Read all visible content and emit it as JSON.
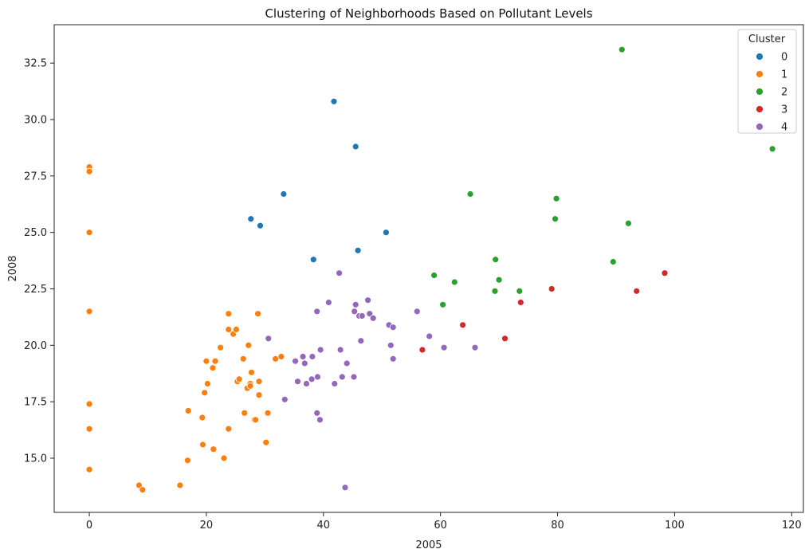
{
  "chart_data": {
    "type": "scatter",
    "title": "Clustering of Neighborhoods Based on Pollutant Levels",
    "xlabel": "2005",
    "ylabel": "2008",
    "xlim": [
      -6,
      122
    ],
    "ylim": [
      12.6,
      34.2
    ],
    "xticks": [
      0,
      20,
      40,
      60,
      80,
      100,
      120
    ],
    "yticks": [
      15.0,
      17.5,
      20.0,
      22.5,
      25.0,
      27.5,
      30.0,
      32.5
    ],
    "xtick_labels": [
      "0",
      "20",
      "40",
      "60",
      "80",
      "100",
      "120"
    ],
    "ytick_labels": [
      "15.0",
      "17.5",
      "20.0",
      "22.5",
      "25.0",
      "27.5",
      "30.0",
      "32.5"
    ],
    "grid": false,
    "legend": {
      "title": "Cluster",
      "position": "top-right"
    },
    "series": [
      {
        "name": "0",
        "color": "#1f77b4",
        "points": [
          [
            41.8,
            30.8
          ],
          [
            45.5,
            28.8
          ],
          [
            33.2,
            26.7
          ],
          [
            27.6,
            25.6
          ],
          [
            29.2,
            25.3
          ],
          [
            50.7,
            25.0
          ],
          [
            45.9,
            24.2
          ],
          [
            38.3,
            23.8
          ]
        ]
      },
      {
        "name": "1",
        "color": "#ff7f0e",
        "points": [
          [
            0,
            27.9
          ],
          [
            0,
            27.7
          ],
          [
            0,
            25.0
          ],
          [
            0,
            21.5
          ],
          [
            0,
            17.4
          ],
          [
            0,
            16.3
          ],
          [
            0,
            14.5
          ],
          [
            8.5,
            13.8
          ],
          [
            9.1,
            13.6
          ],
          [
            15.5,
            13.8
          ],
          [
            16.8,
            14.9
          ],
          [
            16.9,
            17.1
          ],
          [
            19.3,
            16.8
          ],
          [
            19.4,
            15.6
          ],
          [
            19.7,
            17.9
          ],
          [
            20.0,
            19.3
          ],
          [
            20.2,
            18.3
          ],
          [
            21.1,
            19.0
          ],
          [
            21.2,
            15.4
          ],
          [
            21.5,
            19.3
          ],
          [
            22.4,
            19.9
          ],
          [
            23.0,
            15.0
          ],
          [
            23.8,
            16.3
          ],
          [
            23.8,
            21.4
          ],
          [
            23.8,
            20.7
          ],
          [
            24.6,
            20.5
          ],
          [
            25.1,
            20.7
          ],
          [
            25.3,
            18.4
          ],
          [
            25.6,
            18.5
          ],
          [
            26.3,
            19.4
          ],
          [
            26.5,
            17.0
          ],
          [
            27.0,
            18.1
          ],
          [
            27.2,
            20.0
          ],
          [
            27.5,
            18.3
          ],
          [
            27.5,
            18.2
          ],
          [
            27.7,
            18.8
          ],
          [
            28.2,
            16.7
          ],
          [
            28.4,
            16.7
          ],
          [
            28.8,
            21.4
          ],
          [
            29.0,
            18.4
          ],
          [
            29.0,
            17.8
          ],
          [
            30.2,
            15.7
          ],
          [
            30.5,
            17.0
          ],
          [
            31.8,
            19.4
          ],
          [
            32.8,
            19.5
          ]
        ]
      },
      {
        "name": "2",
        "color": "#2ca02c",
        "points": [
          [
            91.0,
            33.1
          ],
          [
            116.7,
            28.7
          ],
          [
            65.1,
            26.7
          ],
          [
            79.8,
            26.5
          ],
          [
            79.6,
            25.6
          ],
          [
            92.1,
            25.4
          ],
          [
            69.4,
            23.8
          ],
          [
            89.5,
            23.7
          ],
          [
            58.9,
            23.1
          ],
          [
            62.4,
            22.8
          ],
          [
            70.0,
            22.9
          ],
          [
            69.3,
            22.4
          ],
          [
            73.5,
            22.4
          ],
          [
            60.4,
            21.8
          ]
        ]
      },
      {
        "name": "3",
        "color": "#d62728",
        "points": [
          [
            98.3,
            23.2
          ],
          [
            79.0,
            22.5
          ],
          [
            93.5,
            22.4
          ],
          [
            73.7,
            21.9
          ],
          [
            63.8,
            20.9
          ],
          [
            71.0,
            20.3
          ],
          [
            56.9,
            19.8
          ]
        ]
      },
      {
        "name": "4",
        "color": "#9467bd",
        "points": [
          [
            42.7,
            23.2
          ],
          [
            47.6,
            22.0
          ],
          [
            40.9,
            21.9
          ],
          [
            45.5,
            21.8
          ],
          [
            45.3,
            21.5
          ],
          [
            38.9,
            21.5
          ],
          [
            56.0,
            21.5
          ],
          [
            47.9,
            21.4
          ],
          [
            46.1,
            21.3
          ],
          [
            46.6,
            21.3
          ],
          [
            48.5,
            21.2
          ],
          [
            51.2,
            20.9
          ],
          [
            51.9,
            20.8
          ],
          [
            30.6,
            20.3
          ],
          [
            46.4,
            20.2
          ],
          [
            58.1,
            20.4
          ],
          [
            51.5,
            20.0
          ],
          [
            60.6,
            19.9
          ],
          [
            65.9,
            19.9
          ],
          [
            42.9,
            19.8
          ],
          [
            39.5,
            19.8
          ],
          [
            36.5,
            19.5
          ],
          [
            38.1,
            19.5
          ],
          [
            51.9,
            19.4
          ],
          [
            35.2,
            19.3
          ],
          [
            36.8,
            19.2
          ],
          [
            44.0,
            19.2
          ],
          [
            39.0,
            18.6
          ],
          [
            43.2,
            18.6
          ],
          [
            45.2,
            18.6
          ],
          [
            38.0,
            18.5
          ],
          [
            35.6,
            18.4
          ],
          [
            37.1,
            18.3
          ],
          [
            41.9,
            18.3
          ],
          [
            33.4,
            17.6
          ],
          [
            38.9,
            17.0
          ],
          [
            39.4,
            16.7
          ],
          [
            43.7,
            13.7
          ]
        ]
      }
    ]
  }
}
